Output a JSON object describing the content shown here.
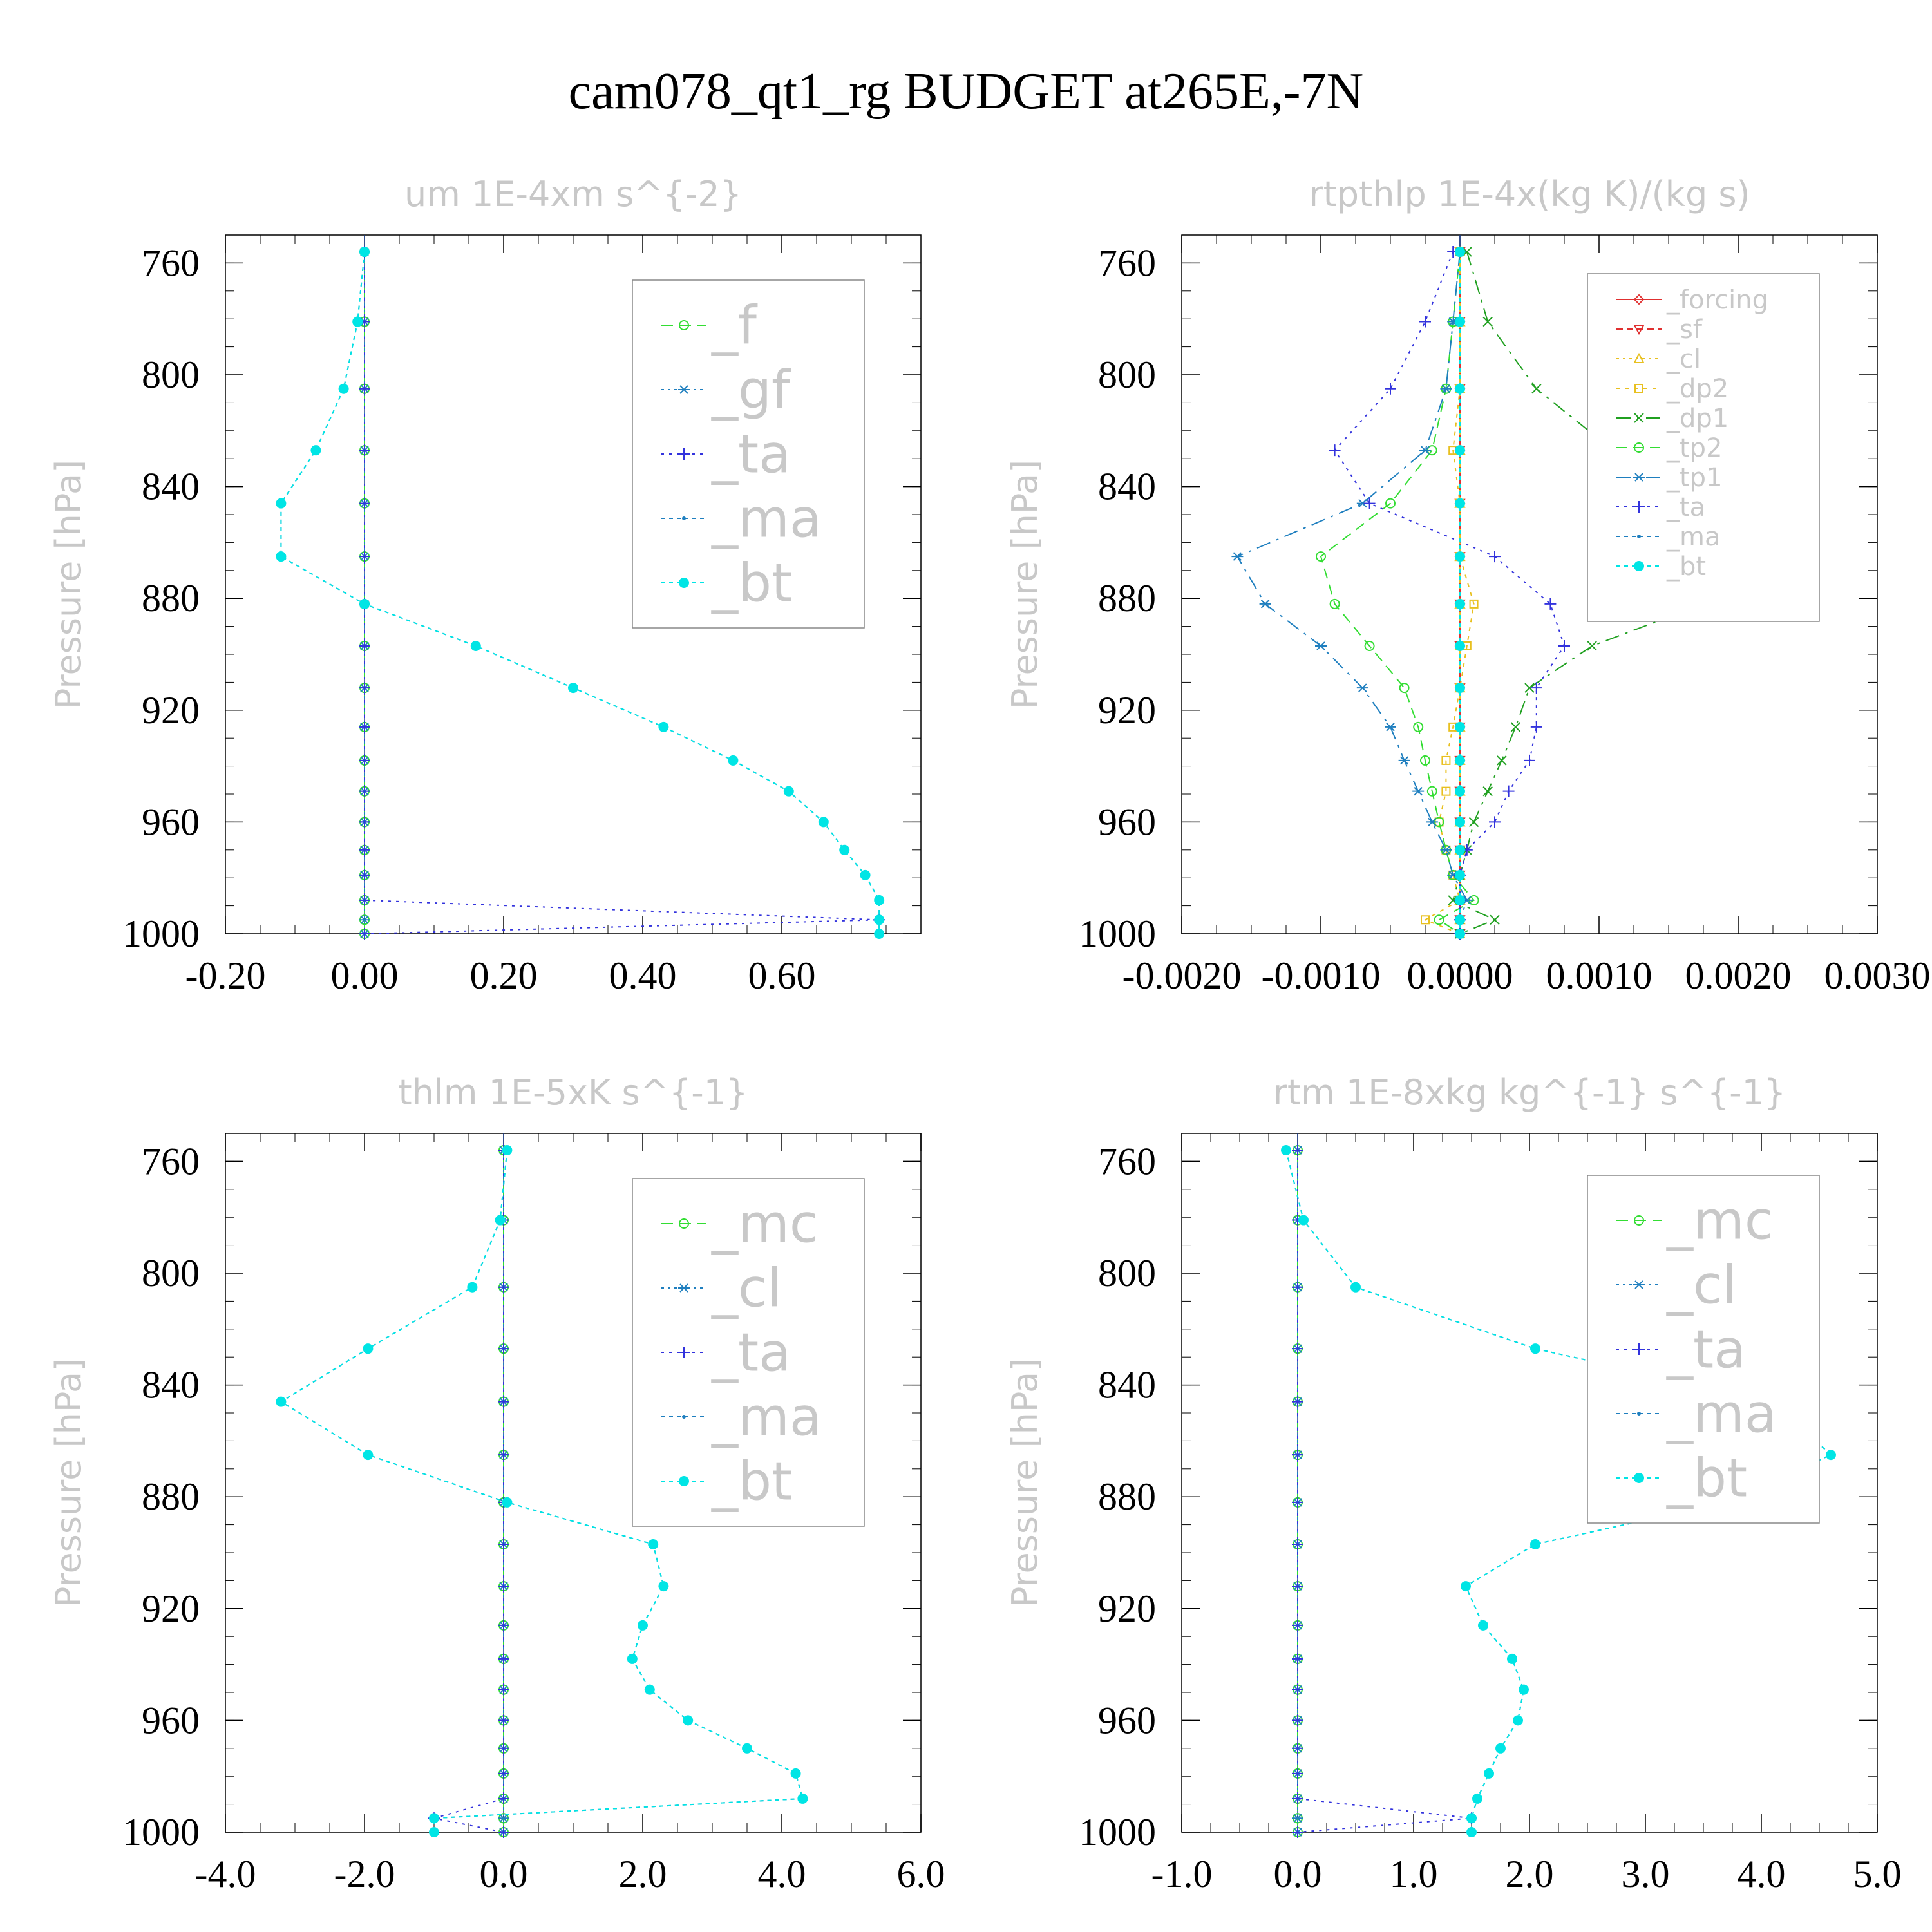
{
  "title": "cam078_qt1_rg  BUDGET at265E,-7N",
  "colors": {
    "_f": "#33dd33",
    "_gf": "#1f7fbf",
    "_ta": "#3333dd",
    "_ma": "#1f7fbf",
    "_bt": "#00e5e5",
    "_mc": "#33dd33",
    "_cl": "#1f7fbf",
    "_forcing": "#e03030",
    "_sf": "#e03030",
    "_cl2": "#e8c020",
    "_dp2": "#e8c020",
    "_dp1": "#20a020",
    "_tp2": "#33dd33",
    "_tp1": "#1f7fbf"
  },
  "chart_data": [
    {
      "type": "line",
      "title": "um  1E-4xm s^{-2}",
      "ylabel": "Pressure [hPa]",
      "y_reversed": true,
      "ylim": [
        1000,
        750
      ],
      "xlim": [
        -0.2,
        0.8
      ],
      "xticks": [
        "-0.20",
        "0.00",
        "0.20",
        "0.40",
        "0.60"
      ],
      "xtick_values": [
        -0.2,
        0.0,
        0.2,
        0.4,
        0.6
      ],
      "yticks": [
        "760",
        "800",
        "840",
        "880",
        "920",
        "960",
        "1000"
      ],
      "yticks_values": [
        760,
        800,
        840,
        880,
        920,
        960,
        1000
      ],
      "legend": [
        "_f",
        "_gf",
        "_ta",
        "_ma",
        "_bt"
      ],
      "pressure": [
        756,
        781,
        805,
        827,
        846,
        865,
        882,
        897,
        912,
        926,
        938,
        949,
        960,
        970,
        979,
        988,
        995,
        1000
      ],
      "series": [
        {
          "name": "_f",
          "values": [
            0,
            0,
            0,
            0,
            0,
            0,
            0,
            0,
            0,
            0,
            0,
            0,
            0,
            0,
            0,
            0,
            0,
            0
          ]
        },
        {
          "name": "_gf",
          "values": [
            0,
            0,
            0,
            0,
            0,
            0,
            0,
            0,
            0,
            0,
            0,
            0,
            0,
            0,
            0,
            0,
            0,
            0
          ]
        },
        {
          "name": "_ta",
          "values": [
            0,
            0,
            0,
            0,
            0,
            0,
            0,
            0,
            0,
            0,
            0,
            0,
            0,
            0,
            0,
            0,
            0.74,
            0
          ]
        },
        {
          "name": "_ma",
          "values": [
            0,
            -0.01,
            -0.03,
            -0.07,
            -0.12,
            -0.12,
            0,
            0.16,
            0.3,
            0.43,
            0.53,
            0.61,
            0.66,
            0.69,
            0.72,
            0.74,
            0.74,
            0.74
          ]
        },
        {
          "name": "_bt",
          "values": [
            0,
            -0.01,
            -0.03,
            -0.07,
            -0.12,
            -0.12,
            0,
            0.16,
            0.3,
            0.43,
            0.53,
            0.61,
            0.66,
            0.69,
            0.72,
            0.74,
            0.74,
            0.74
          ]
        }
      ]
    },
    {
      "type": "line",
      "title": "rtpthlp  1E-4x(kg K)/(kg s)",
      "ylabel": "Pressure [hPa]",
      "y_reversed": true,
      "ylim": [
        1000,
        750
      ],
      "xlim": [
        -0.002,
        0.003
      ],
      "xticks": [
        "-0.0020",
        "-0.0010",
        "0.0000",
        "0.0010",
        "0.0020",
        "0.0030"
      ],
      "xtick_values": [
        -0.002,
        -0.001,
        0.0,
        0.001,
        0.002,
        0.003
      ],
      "yticks": [
        "760",
        "800",
        "840",
        "880",
        "920",
        "960",
        "1000"
      ],
      "yticks_values": [
        760,
        800,
        840,
        880,
        920,
        960,
        1000
      ],
      "legend": [
        "_forcing",
        "_sf",
        "_cl",
        "_dp2",
        "_dp1",
        "_tp2",
        "_tp1",
        "_ta",
        "_ma",
        "_bt"
      ],
      "pressure": [
        756,
        781,
        805,
        827,
        846,
        865,
        882,
        897,
        912,
        926,
        938,
        949,
        960,
        970,
        979,
        988,
        995,
        1000
      ],
      "series": [
        {
          "name": "_forcing",
          "values": [
            0,
            0,
            0,
            0,
            0,
            0,
            0,
            0,
            0,
            0,
            0,
            0,
            0,
            0,
            0,
            0,
            0,
            0
          ]
        },
        {
          "name": "_sf",
          "values": [
            0,
            0,
            0,
            0,
            0,
            0,
            0,
            0,
            0,
            0,
            0,
            0,
            0,
            0,
            0,
            0,
            0,
            0
          ]
        },
        {
          "name": "_cl",
          "values": [
            0,
            0,
            0,
            0,
            0,
            0,
            0,
            0,
            0,
            0,
            0,
            0,
            0,
            0,
            0,
            0,
            0,
            0
          ]
        },
        {
          "name": "_dp2",
          "values": [
            0,
            0,
            0,
            -5e-05,
            0,
            0,
            0.0001,
            5e-05,
            0,
            -5e-05,
            -0.0001,
            -0.0001,
            -0.00015,
            -0.0001,
            -5e-05,
            0,
            -0.00025,
            0
          ]
        },
        {
          "name": "_dp1",
          "values": [
            5e-05,
            0.0002,
            0.00055,
            0.0011,
            0.00205,
            0.0022,
            0.00175,
            0.00095,
            0.0005,
            0.0004,
            0.0003,
            0.0002,
            0.0001,
            5e-05,
            0,
            -5e-05,
            0.00025,
            0
          ]
        },
        {
          "name": "_tp2",
          "values": [
            0,
            -5e-05,
            -0.0001,
            -0.0002,
            -0.0005,
            -0.001,
            -0.0009,
            -0.00065,
            -0.0004,
            -0.0003,
            -0.00025,
            -0.0002,
            -0.00015,
            -0.0001,
            -5e-05,
            0.0001,
            -0.00015,
            0
          ]
        },
        {
          "name": "_tp1",
          "values": [
            0,
            -5e-05,
            -0.0001,
            -0.00025,
            -0.0007,
            -0.0016,
            -0.0014,
            -0.001,
            -0.0007,
            -0.0005,
            -0.0004,
            -0.0003,
            -0.0002,
            -0.0001,
            -5e-05,
            5e-05,
            0,
            0
          ]
        },
        {
          "name": "_ta",
          "values": [
            -5e-05,
            -0.00025,
            -0.0005,
            -0.0009,
            -0.00065,
            0.00025,
            0.00065,
            0.00075,
            0.00055,
            0.00055,
            0.0005,
            0.00035,
            0.00025,
            5e-05,
            0,
            0,
            0,
            0
          ]
        },
        {
          "name": "_ma",
          "values": [
            0,
            0,
            0,
            0,
            0,
            0,
            0,
            0,
            0,
            0,
            0,
            0,
            0,
            0,
            0,
            0,
            0,
            0
          ]
        },
        {
          "name": "_bt",
          "values": [
            0,
            0,
            0,
            0,
            0,
            0,
            0,
            0,
            0,
            0,
            0,
            0,
            0,
            0,
            0,
            0,
            0,
            0
          ]
        }
      ]
    },
    {
      "type": "line",
      "title": "thlm  1E-5xK s^{-1}",
      "ylabel": "Pressure [hPa]",
      "y_reversed": true,
      "ylim": [
        1000,
        750
      ],
      "xlim": [
        -4.0,
        6.0
      ],
      "xticks": [
        "-4.0",
        "-2.0",
        "0.0",
        "2.0",
        "4.0",
        "6.0"
      ],
      "xtick_values": [
        -4,
        -2,
        0,
        2,
        4,
        6
      ],
      "yticks": [
        "760",
        "800",
        "840",
        "880",
        "920",
        "960",
        "1000"
      ],
      "yticks_values": [
        760,
        800,
        840,
        880,
        920,
        960,
        1000
      ],
      "legend": [
        "_mc",
        "_cl",
        "_ta",
        "_ma",
        "_bt"
      ],
      "pressure": [
        756,
        781,
        805,
        827,
        846,
        865,
        882,
        897,
        912,
        926,
        938,
        949,
        960,
        970,
        979,
        988,
        995,
        1000
      ],
      "series": [
        {
          "name": "_mc",
          "values": [
            0,
            0,
            0,
            0,
            0,
            0,
            0,
            0,
            0,
            0,
            0,
            0,
            0,
            0,
            0,
            0,
            0,
            0
          ]
        },
        {
          "name": "_cl",
          "values": [
            0,
            0,
            0,
            0,
            0,
            0,
            0,
            0,
            0,
            0,
            0,
            0,
            0,
            0,
            0,
            0,
            0,
            0
          ]
        },
        {
          "name": "_ta",
          "values": [
            0,
            0,
            0,
            0,
            0,
            0,
            0,
            0,
            0,
            0,
            0,
            0,
            0,
            0,
            0,
            0,
            -1.0,
            0
          ]
        },
        {
          "name": "_ma",
          "values": [
            0.05,
            -0.05,
            -0.45,
            -1.95,
            -3.2,
            -1.95,
            0.05,
            2.15,
            2.3,
            2.0,
            1.85,
            2.1,
            2.65,
            3.5,
            4.2,
            4.3,
            -1.0,
            -1.0
          ]
        },
        {
          "name": "_bt",
          "values": [
            0.05,
            -0.05,
            -0.45,
            -1.95,
            -3.2,
            -1.95,
            0.05,
            2.15,
            2.3,
            2.0,
            1.85,
            2.1,
            2.65,
            3.5,
            4.2,
            4.3,
            -1.0,
            -1.0
          ]
        }
      ]
    },
    {
      "type": "line",
      "title": "rtm  1E-8xkg kg^{-1} s^{-1}",
      "ylabel": "Pressure [hPa]",
      "y_reversed": true,
      "ylim": [
        1000,
        750
      ],
      "xlim": [
        -1.0,
        5.0
      ],
      "xticks": [
        "-1.0",
        "0.0",
        "1.0",
        "2.0",
        "3.0",
        "4.0",
        "5.0"
      ],
      "xtick_values": [
        -1,
        0,
        1,
        2,
        3,
        4,
        5
      ],
      "yticks": [
        "760",
        "800",
        "840",
        "880",
        "920",
        "960",
        "1000"
      ],
      "yticks_values": [
        760,
        800,
        840,
        880,
        920,
        960,
        1000
      ],
      "legend": [
        "_mc",
        "_cl",
        "_ta",
        "_ma",
        "_bt"
      ],
      "pressure": [
        756,
        781,
        805,
        827,
        846,
        865,
        882,
        897,
        912,
        926,
        938,
        949,
        960,
        970,
        979,
        988,
        995,
        1000
      ],
      "series": [
        {
          "name": "_mc",
          "values": [
            0,
            0,
            0,
            0,
            0,
            0,
            0,
            0,
            0,
            0,
            0,
            0,
            0,
            0,
            0,
            0,
            0,
            0
          ]
        },
        {
          "name": "_cl",
          "values": [
            0,
            0,
            0,
            0,
            0,
            0,
            0,
            0,
            0,
            0,
            0,
            0,
            0,
            0,
            0,
            0,
            0,
            0
          ]
        },
        {
          "name": "_ta",
          "values": [
            0,
            0,
            0,
            0,
            0,
            0,
            0,
            0,
            0,
            0,
            0,
            0,
            0,
            0,
            0,
            0,
            1.5,
            0
          ]
        },
        {
          "name": "_ma",
          "values": [
            -0.1,
            0.05,
            0.5,
            2.05,
            4.1,
            4.6,
            3.7,
            2.05,
            1.45,
            1.6,
            1.85,
            1.95,
            1.9,
            1.75,
            1.65,
            1.55,
            1.5,
            1.5
          ]
        },
        {
          "name": "_bt",
          "values": [
            -0.1,
            0.05,
            0.5,
            2.05,
            4.1,
            4.6,
            3.7,
            2.05,
            1.45,
            1.6,
            1.85,
            1.95,
            1.9,
            1.75,
            1.65,
            1.55,
            1.5,
            1.5
          ]
        }
      ]
    }
  ]
}
